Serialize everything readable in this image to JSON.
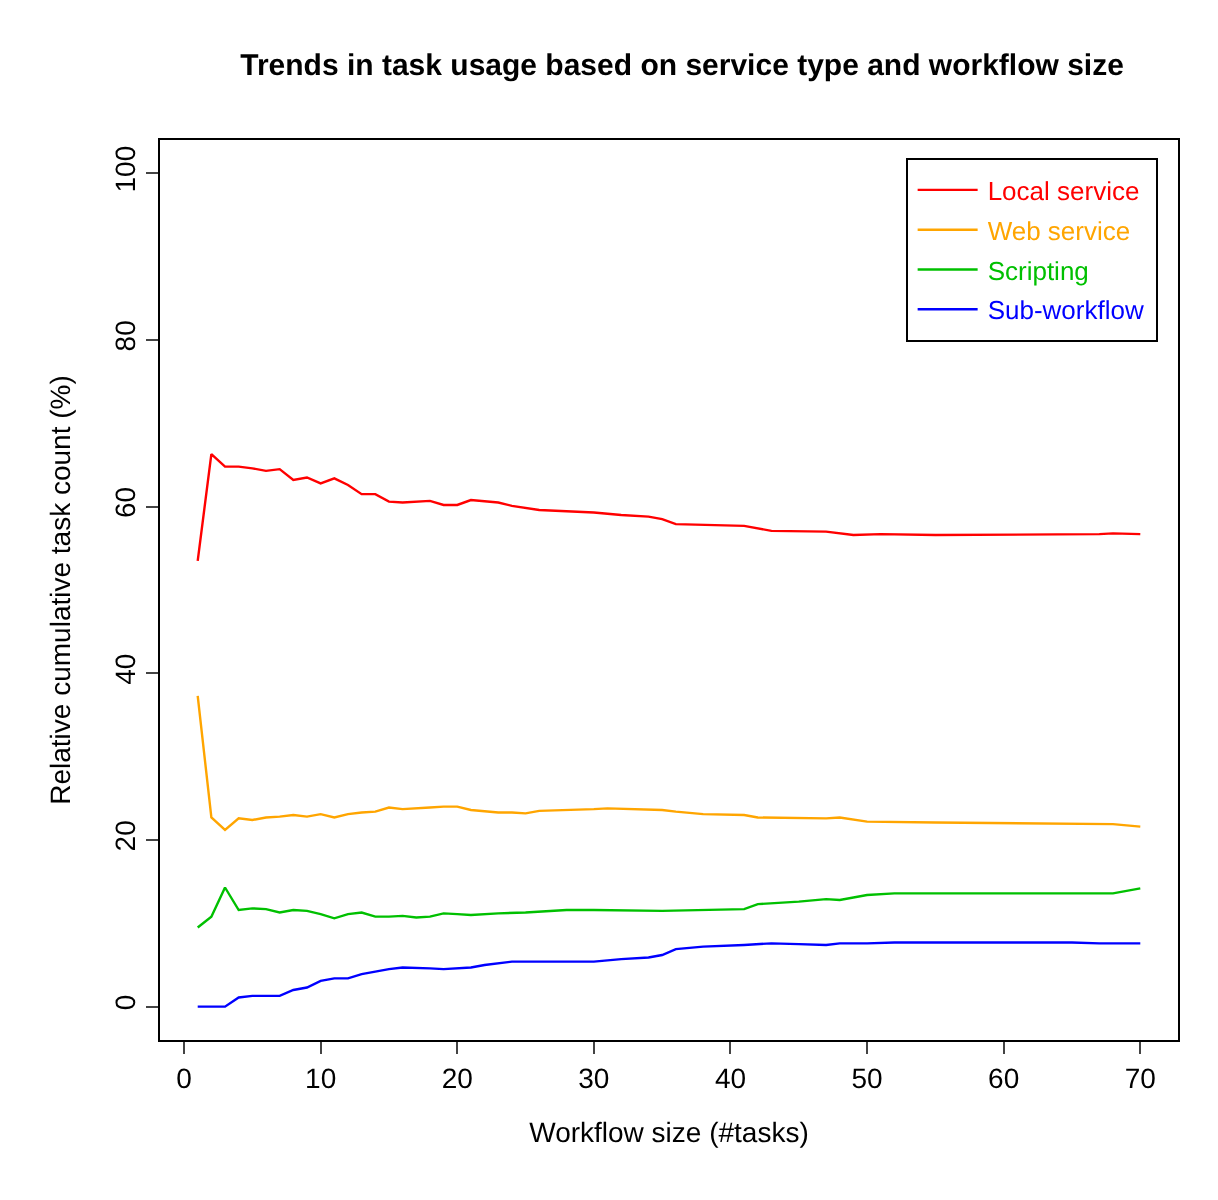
{
  "chart_data": {
    "type": "line",
    "title": "Trends in task usage based on service type and workflow size",
    "xlabel": "Workflow size (#tasks)",
    "ylabel": "Relative cumulative task count (%)",
    "xlim": [
      -1.76,
      72.76
    ],
    "xticks": [
      0,
      10,
      20,
      30,
      40,
      50,
      60,
      70
    ],
    "ylim": [
      -4,
      104
    ],
    "yticks": [
      0,
      20,
      40,
      60,
      80,
      100
    ],
    "legend": "top right",
    "marker": "none",
    "line_style": "solid",
    "series": [
      {
        "name": "Local service",
        "color": "#ff0000",
        "x": [
          1,
          2,
          3,
          4,
          5,
          6,
          7,
          8,
          9,
          10,
          11,
          12,
          13,
          14,
          15,
          16,
          18,
          19,
          20,
          21,
          23,
          24,
          26,
          30,
          32,
          34,
          35,
          36,
          41,
          43,
          47,
          49,
          51,
          55,
          67,
          68,
          70
        ],
        "values": [
          53.5,
          66.3,
          64.8,
          64.8,
          64.6,
          64.3,
          64.5,
          63.2,
          63.5,
          62.8,
          63.4,
          62.6,
          61.5,
          61.5,
          60.6,
          60.5,
          60.7,
          60.2,
          60.2,
          60.8,
          60.5,
          60.1,
          59.6,
          59.3,
          59.0,
          58.8,
          58.5,
          57.9,
          57.7,
          57.1,
          57.0,
          56.6,
          56.7,
          56.6,
          56.7,
          56.8,
          56.7
        ]
      },
      {
        "name": "Web service",
        "color": "#ffa500",
        "x": [
          1,
          2,
          3,
          4,
          5,
          6,
          7,
          8,
          9,
          10,
          11,
          12,
          13,
          14,
          15,
          16,
          18,
          19,
          20,
          21,
          23,
          24,
          25,
          26,
          30,
          31,
          35,
          36,
          38,
          41,
          42,
          47,
          48,
          50,
          55,
          68,
          70
        ],
        "values": [
          37.3,
          22.7,
          21.2,
          22.6,
          22.4,
          22.7,
          22.8,
          23.0,
          22.8,
          23.1,
          22.7,
          23.1,
          23.3,
          23.4,
          23.9,
          23.7,
          23.9,
          24.0,
          24.0,
          23.6,
          23.3,
          23.3,
          23.2,
          23.5,
          23.7,
          23.8,
          23.6,
          23.4,
          23.1,
          23.0,
          22.7,
          22.6,
          22.7,
          22.2,
          22.1,
          21.9,
          21.6
        ]
      },
      {
        "name": "Scripting",
        "color": "#00c000",
        "x": [
          1,
          2,
          3,
          4,
          5,
          6,
          7,
          8,
          9,
          10,
          11,
          12,
          13,
          14,
          15,
          16,
          17,
          18,
          19,
          20,
          21,
          23,
          25,
          28,
          30,
          35,
          41,
          42,
          45,
          47,
          48,
          50,
          52,
          68,
          70
        ],
        "values": [
          9.5,
          10.8,
          14.3,
          11.6,
          11.8,
          11.7,
          11.3,
          11.6,
          11.5,
          11.1,
          10.6,
          11.1,
          11.3,
          10.8,
          10.8,
          10.9,
          10.7,
          10.8,
          11.2,
          11.1,
          11.0,
          11.2,
          11.3,
          11.6,
          11.6,
          11.5,
          11.7,
          12.3,
          12.6,
          12.9,
          12.8,
          13.4,
          13.6,
          13.6,
          14.2
        ]
      },
      {
        "name": "Sub-workflow",
        "color": "#0000ff",
        "x": [
          1,
          3,
          4,
          5,
          7,
          8,
          9,
          10,
          11,
          12,
          13,
          14,
          15,
          16,
          18,
          19,
          21,
          22,
          24,
          26,
          30,
          32,
          34,
          35,
          36,
          38,
          41,
          43,
          45,
          47,
          48,
          50,
          52,
          65,
          67,
          70
        ],
        "values": [
          0,
          0,
          1.1,
          1.3,
          1.3,
          2.0,
          2.3,
          3.1,
          3.4,
          3.4,
          3.9,
          4.2,
          4.5,
          4.7,
          4.6,
          4.5,
          4.7,
          5.0,
          5.4,
          5.4,
          5.4,
          5.7,
          5.9,
          6.2,
          6.9,
          7.2,
          7.4,
          7.6,
          7.5,
          7.4,
          7.6,
          7.6,
          7.7,
          7.7,
          7.6,
          7.6
        ]
      }
    ]
  }
}
